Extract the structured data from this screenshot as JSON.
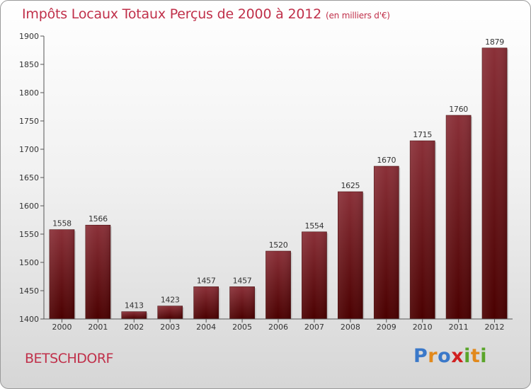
{
  "header": {
    "title": "Impôts Locaux Totaux Perçus de 2000 à 2012",
    "subtitle": "(en milliers d'€)"
  },
  "footer": {
    "city": "BETSCHDORF",
    "logo": "Proxiti"
  },
  "colors": {
    "title": "#c0304a",
    "bar_top": "#8a3038",
    "bar_bottom": "#4a0000",
    "logo_letters": [
      "#3a78c9",
      "#e2891c",
      "#3a78c9",
      "#d02020",
      "#5aa52a",
      "#e2891c",
      "#5aa52a"
    ]
  },
  "chart_data": {
    "type": "bar",
    "title": "Impôts Locaux Totaux Perçus de 2000 à 2012",
    "subtitle": "(en milliers d'€)",
    "xlabel": "",
    "ylabel": "",
    "categories": [
      "2000",
      "2001",
      "2002",
      "2003",
      "2004",
      "2005",
      "2006",
      "2007",
      "2008",
      "2009",
      "2010",
      "2011",
      "2012"
    ],
    "values": [
      1558,
      1566,
      1413,
      1423,
      1457,
      1457,
      1520,
      1554,
      1625,
      1670,
      1715,
      1760,
      1879
    ],
    "ylim": [
      1400,
      1900
    ],
    "yticks": [
      1400,
      1450,
      1500,
      1550,
      1600,
      1650,
      1700,
      1750,
      1800,
      1850,
      1900
    ],
    "grid": false,
    "legend": "none"
  }
}
